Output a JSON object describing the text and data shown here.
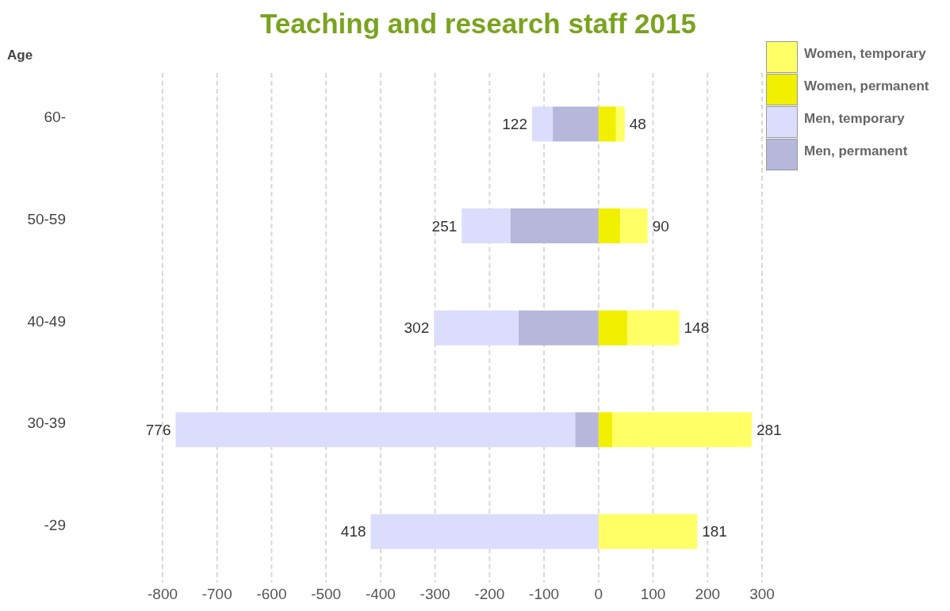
{
  "chart_data": {
    "type": "bar",
    "orientation": "horizontal",
    "stacked": true,
    "title": "Teaching and research staff 2015",
    "ylabel": "Age",
    "categories": [
      "60-",
      "50-59",
      "40-49",
      "30-39",
      "-29"
    ],
    "series": [
      {
        "name": "Men, permanent",
        "color": "#b7b7db",
        "values": [
          -84,
          -162,
          -147,
          -43,
          0
        ]
      },
      {
        "name": "Men, temporary",
        "color": "#dcdcfc",
        "values": [
          -38,
          -89,
          -155,
          -733,
          -418
        ]
      },
      {
        "name": "Women, permanent",
        "color": "#f0f000",
        "values": [
          32,
          40,
          53,
          25,
          0
        ]
      },
      {
        "name": "Women, temporary",
        "color": "#ffff66",
        "values": [
          16,
          50,
          95,
          256,
          181
        ]
      }
    ],
    "xlim": [
      -800,
      300
    ],
    "xticks": [
      -800,
      -700,
      -600,
      -500,
      -400,
      -300,
      -200,
      -100,
      0,
      100,
      200,
      300
    ],
    "grid": "x",
    "legend": "top right",
    "annotations": [
      {
        "text": "122",
        "x": -122,
        "y": "60-"
      },
      {
        "text": "48",
        "x": 48,
        "y": "60-"
      },
      {
        "text": "251",
        "x": -251,
        "y": "50-59"
      },
      {
        "text": "90",
        "x": 90,
        "y": "50-59"
      },
      {
        "text": "302",
        "x": -302,
        "y": "40-49"
      },
      {
        "text": "148",
        "x": 148,
        "y": "40-49"
      },
      {
        "text": "776",
        "x": -776,
        "y": "30-39"
      },
      {
        "text": "281",
        "x": 281,
        "y": "30-39"
      },
      {
        "text": "418",
        "x": -418,
        "y": "-29"
      },
      {
        "text": "181",
        "x": 181,
        "y": "-29"
      }
    ]
  }
}
